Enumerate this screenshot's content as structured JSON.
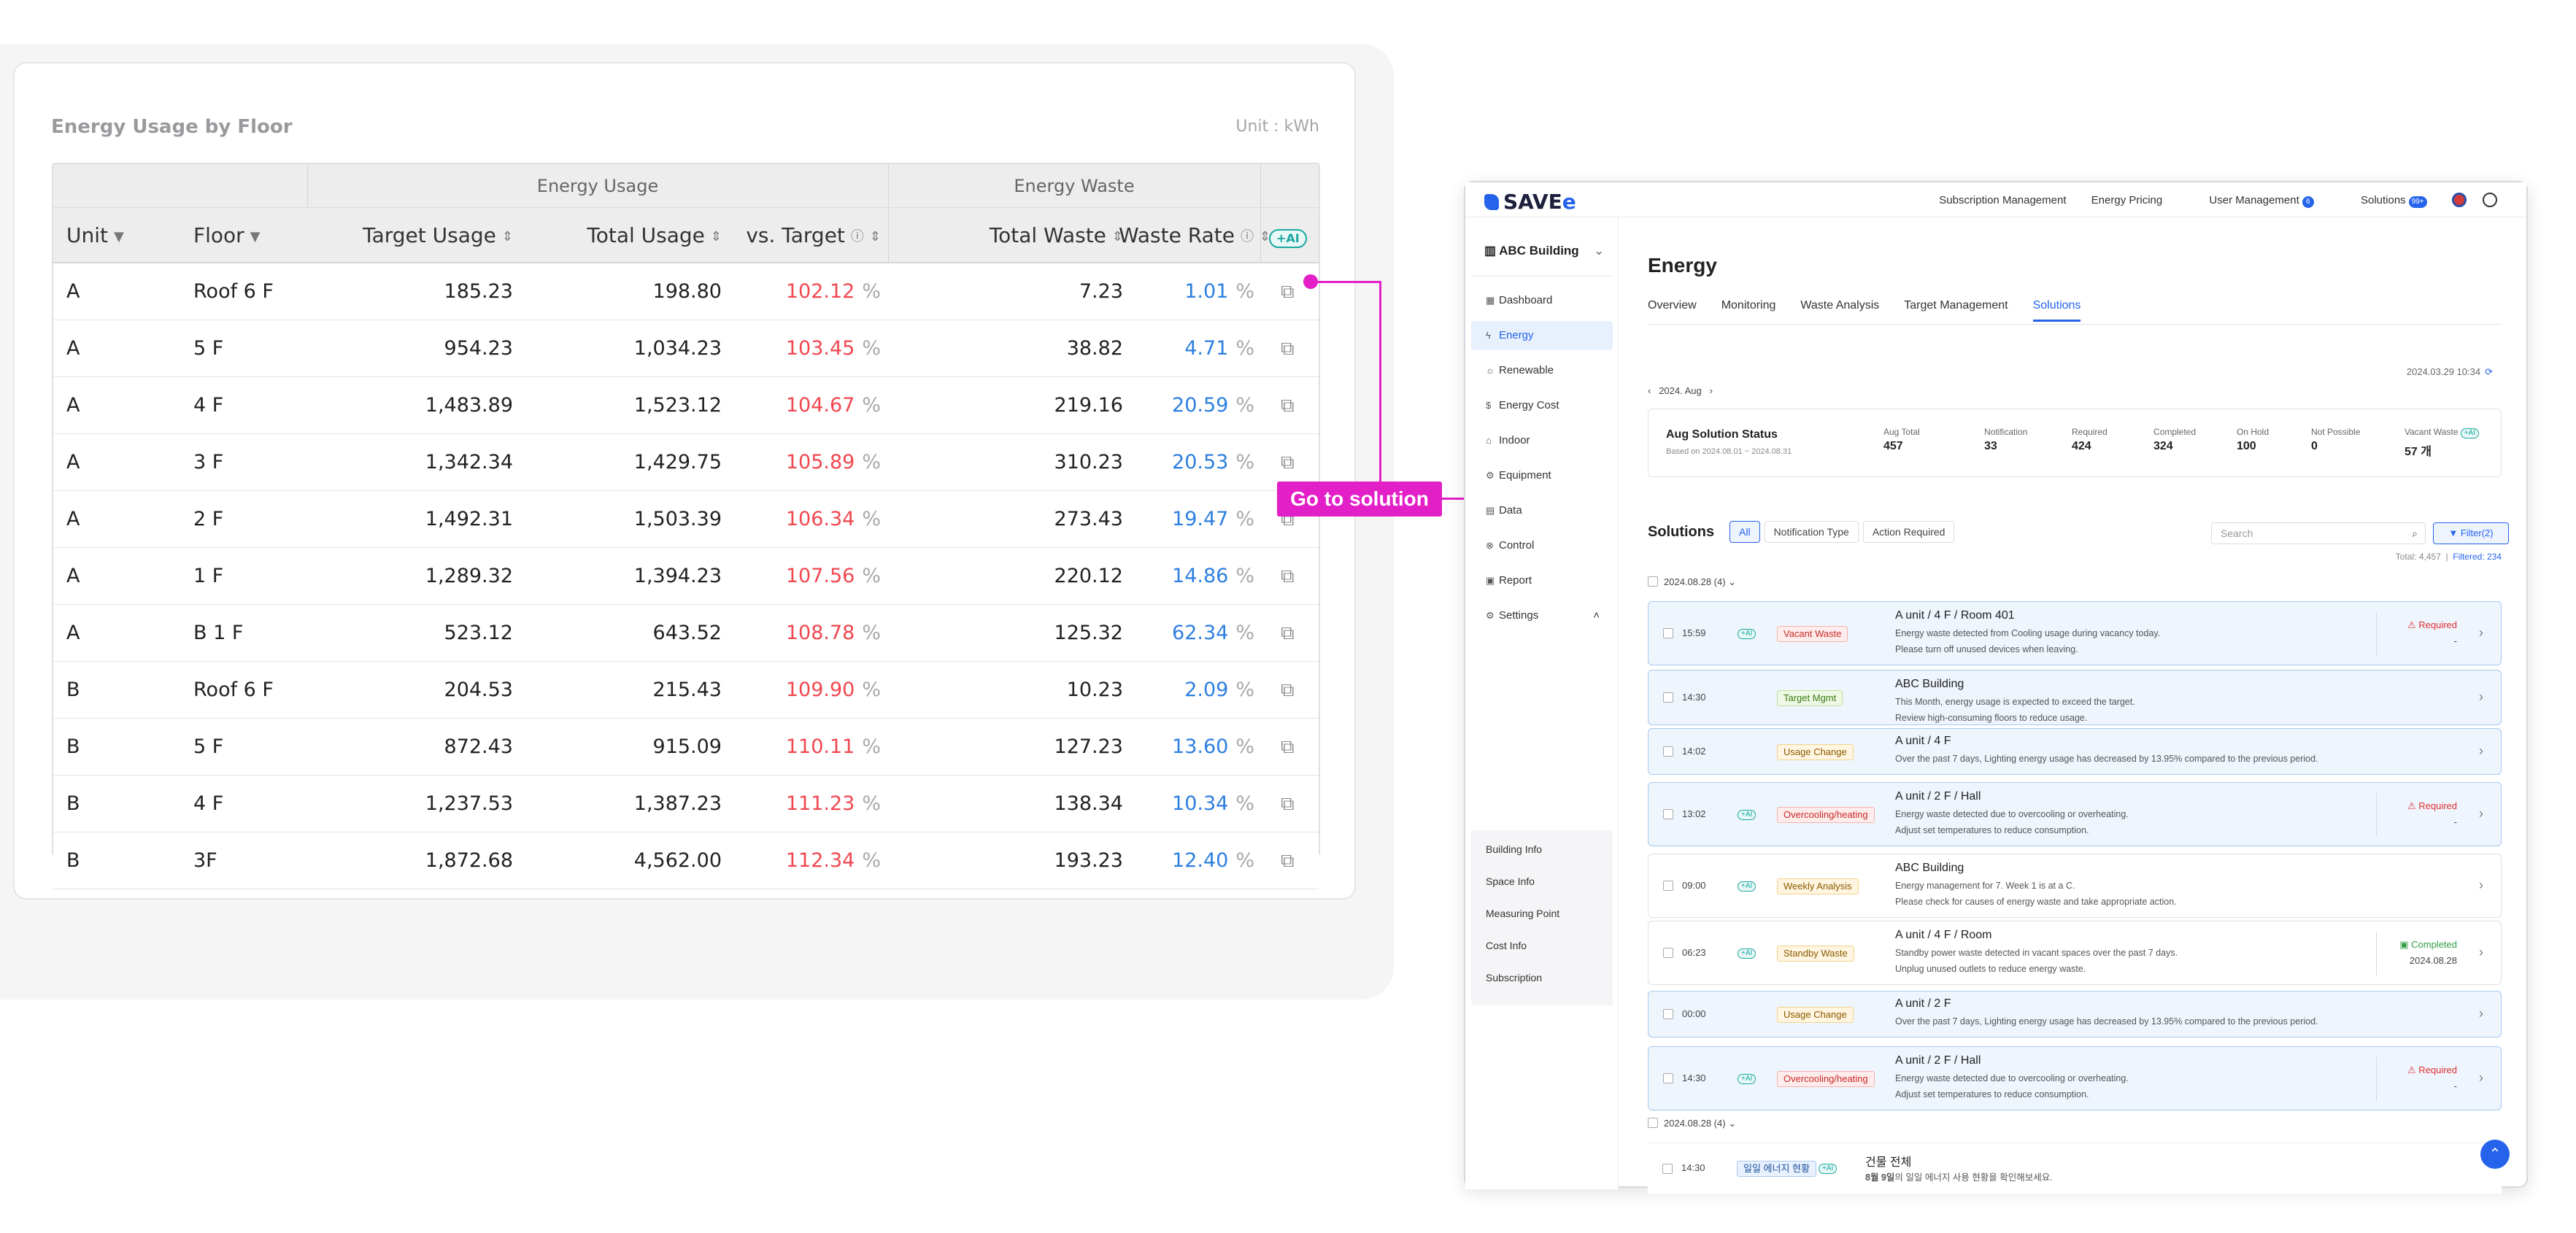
{
  "left": {
    "title": "Energy Usage by Floor",
    "unit_label": "Unit : kWh",
    "group_usage": "Energy Usage",
    "group_waste": "Energy Waste",
    "columns": {
      "unit": "Unit",
      "floor": "Floor",
      "target": "Target Usage",
      "total": "Total Usage",
      "vs": "vs. Target",
      "waste": "Total Waste",
      "rate": "Waste Rate",
      "ai": "+AI"
    },
    "rows": [
      {
        "unit": "A",
        "floor": "Roof 6 F",
        "target": "185.23",
        "total": "198.80",
        "vs": "102.12",
        "waste": "7.23",
        "rate": "1.01"
      },
      {
        "unit": "A",
        "floor": "5 F",
        "target": "954.23",
        "total": "1,034.23",
        "vs": "103.45",
        "waste": "38.82",
        "rate": "4.71"
      },
      {
        "unit": "A",
        "floor": "4 F",
        "target": "1,483.89",
        "total": "1,523.12",
        "vs": "104.67",
        "waste": "219.16",
        "rate": "20.59"
      },
      {
        "unit": "A",
        "floor": "3 F",
        "target": "1,342.34",
        "total": "1,429.75",
        "vs": "105.89",
        "waste": "310.23",
        "rate": "20.53"
      },
      {
        "unit": "A",
        "floor": "2 F",
        "target": "1,492.31",
        "total": "1,503.39",
        "vs": "106.34",
        "waste": "273.43",
        "rate": "19.47"
      },
      {
        "unit": "A",
        "floor": "1 F",
        "target": "1,289.32",
        "total": "1,394.23",
        "vs": "107.56",
        "waste": "220.12",
        "rate": "14.86"
      },
      {
        "unit": "A",
        "floor": "B 1 F",
        "target": "523.12",
        "total": "643.52",
        "vs": "108.78",
        "waste": "125.32",
        "rate": "62.34"
      },
      {
        "unit": "B",
        "floor": "Roof 6 F",
        "target": "204.53",
        "total": "215.43",
        "vs": "109.90",
        "waste": "10.23",
        "rate": "2.09"
      },
      {
        "unit": "B",
        "floor": "5 F",
        "target": "872.43",
        "total": "915.09",
        "vs": "110.11",
        "waste": "127.23",
        "rate": "13.60"
      },
      {
        "unit": "B",
        "floor": "4 F",
        "target": "1,237.53",
        "total": "1,387.23",
        "vs": "111.23",
        "waste": "138.34",
        "rate": "10.34"
      },
      {
        "unit": "B",
        "floor": "3F",
        "target": "1,872.68",
        "total": "4,562.00",
        "vs": "112.34",
        "waste": "193.23",
        "rate": "12.40"
      }
    ],
    "pct": "%"
  },
  "connector_label": "Go to solution",
  "app": {
    "logo": "SAVE",
    "logo_e": "e",
    "nav": {
      "subscription": "Subscription Management",
      "pricing": "Energy Pricing",
      "users": "User Management",
      "users_badge": "6",
      "solutions": "Solutions",
      "solutions_badge": "99+"
    },
    "sidebar": {
      "building": "ABC Building",
      "items": [
        "Dashboard",
        "Energy",
        "Renewable",
        "Energy Cost",
        "Indoor",
        "Equipment",
        "Data",
        "Control",
        "Report",
        "Settings"
      ],
      "sub": [
        "Building Info",
        "Space Info",
        "Measuring Point",
        "Cost Info",
        "Subscription"
      ]
    },
    "page_title": "Energy",
    "tabs": [
      "Overview",
      "Monitoring",
      "Waste Analysis",
      "Target Management",
      "Solutions"
    ],
    "timestamp": "2024.03.29 10:34",
    "month": "2024. Aug",
    "status": {
      "title": "Aug Solution Status",
      "sub": "Based on 2024.08.01 ~ 2024.08.31",
      "stats": [
        {
          "label": "Aug Total",
          "value": "457"
        },
        {
          "label": "Notification",
          "value": "33"
        },
        {
          "label": "Required",
          "value": "424"
        },
        {
          "label": "Completed",
          "value": "324"
        },
        {
          "label": "On Hold",
          "value": "100"
        },
        {
          "label": "Not Possible",
          "value": "0"
        },
        {
          "label": "Vacant Waste",
          "value": "57 개"
        }
      ],
      "ai": "+AI"
    },
    "solutions": {
      "title": "Solutions",
      "filters": [
        "All",
        "Notification Type",
        "Action Required"
      ],
      "search_placeholder": "Search",
      "filter_btn": "Filter(2)",
      "total": "Total: 4,457",
      "filtered": "Filtered: 234",
      "group1": "2024.08.28 (4)",
      "group2": "2024.08.28 (4)",
      "ai": "+AI",
      "cards": [
        {
          "time": "15:59",
          "ai": true,
          "tag": "Vacant Waste",
          "title": "A unit / 4 F / Room 401",
          "desc1": "Energy waste detected from Cooling usage during vacancy today.",
          "desc2": "Please turn off unused devices when leaving.",
          "status": "Required",
          "sub": "-"
        },
        {
          "time": "14:30",
          "ai": false,
          "tag": "Target Mgmt",
          "title": "ABC Building",
          "desc1": "This Month, energy usage is expected to exceed the target.",
          "desc2": "Review high-consuming floors to reduce usage.",
          "status": "",
          "sub": ""
        },
        {
          "time": "14:02",
          "ai": false,
          "tag": "Usage Change",
          "title": "A unit / 4 F",
          "desc1": "Over the past 7 days, Lighting energy usage has decreased by 13.95% compared to the previous period.",
          "desc2": "",
          "status": "",
          "sub": ""
        },
        {
          "time": "13:02",
          "ai": true,
          "tag": "Overcooling/heating",
          "title": "A unit / 2 F / Hall",
          "desc1": "Energy waste detected due to overcooling or overheating.",
          "desc2": "Adjust set temperatures to reduce consumption.",
          "status": "Required",
          "sub": "-"
        },
        {
          "time": "09:00",
          "ai": true,
          "tag": "Weekly Analysis",
          "title": "ABC Building",
          "desc1": "Energy management for 7. Week 1 is at a C.",
          "desc2": "Please check for causes of energy waste and take appropriate action.",
          "status": "",
          "sub": ""
        },
        {
          "time": "06:23",
          "ai": true,
          "tag": "Standby Waste",
          "title": "A unit / 4 F / Room",
          "desc1": "Standby power waste detected in vacant spaces over the past 7 days.",
          "desc2": "Unplug unused outlets to reduce energy waste.",
          "status": "Completed",
          "sub": "2024.08.28"
        },
        {
          "time": "00:00",
          "ai": false,
          "tag": "Usage Change",
          "title": "A unit / 2 F",
          "desc1": "Over the past 7 days, Lighting energy usage has decreased by 13.95% compared to the previous period.",
          "desc2": "",
          "status": "",
          "sub": ""
        },
        {
          "time": "14:30",
          "ai": true,
          "tag": "Overcooling/heating",
          "title": "A unit / 2 F / Hall",
          "desc1": "Energy waste detected due to overcooling or overheating.",
          "desc2": "Adjust set temperatures to reduce consumption.",
          "status": "Required",
          "sub": "-"
        }
      ],
      "last": {
        "time": "14:30",
        "tag": "일일 에너지 현황",
        "title": "건물 전체",
        "desc_bold": "8월 9일",
        "desc": "의 일일 에너지 사용 현황을 확인해보세요."
      }
    }
  },
  "colors": {
    "accent": "#2563eb",
    "magenta": "#e31fc7",
    "red": "#f0474f",
    "blue": "#2d7fe0",
    "teal": "#1aa7a0"
  }
}
